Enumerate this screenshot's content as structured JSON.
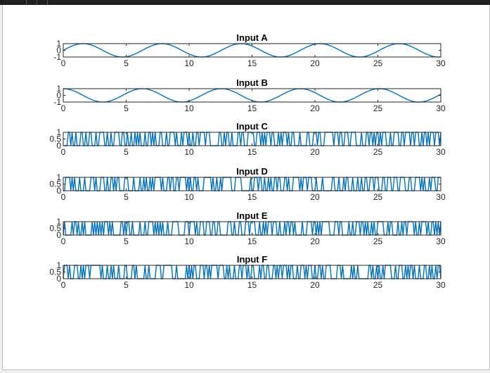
{
  "chart_data": [
    {
      "type": "line",
      "title": "Input A",
      "xlim": [
        0,
        30
      ],
      "ylim": [
        -1,
        1
      ],
      "xticks": [
        "0",
        "5",
        "10",
        "15",
        "20",
        "25",
        "30"
      ],
      "yticks": [
        "-1",
        "0",
        "1"
      ],
      "color": "#0072BD",
      "function": "sine",
      "period": 6.28,
      "phase": 0
    },
    {
      "type": "line",
      "title": "Input B",
      "xlim": [
        0,
        30
      ],
      "ylim": [
        -1,
        1
      ],
      "xticks": [
        "0",
        "5",
        "10",
        "15",
        "20",
        "25",
        "30"
      ],
      "yticks": [
        "-1",
        "0",
        "1"
      ],
      "color": "#0072BD",
      "function": "cosine",
      "period": 6.28,
      "phase": 0
    },
    {
      "type": "line",
      "title": "Input C",
      "xlim": [
        0,
        30
      ],
      "ylim": [
        0,
        1
      ],
      "xticks": [
        "0",
        "5",
        "10",
        "15",
        "20",
        "25",
        "30"
      ],
      "yticks": [
        "0",
        "0.5",
        "1"
      ],
      "color": "#0072BD",
      "function": "random-binary",
      "seed": 11
    },
    {
      "type": "line",
      "title": "Input D",
      "xlim": [
        0,
        30
      ],
      "ylim": [
        0,
        1
      ],
      "xticks": [
        "0",
        "5",
        "10",
        "15",
        "20",
        "25",
        "30"
      ],
      "yticks": [
        "0",
        "0.5",
        "1"
      ],
      "color": "#0072BD",
      "function": "random-binary",
      "seed": 23
    },
    {
      "type": "line",
      "title": "Input E",
      "xlim": [
        0,
        30
      ],
      "ylim": [
        0,
        1
      ],
      "xticks": [
        "0",
        "5",
        "10",
        "15",
        "20",
        "25",
        "30"
      ],
      "yticks": [
        "0",
        "0.5",
        "1"
      ],
      "color": "#0072BD",
      "function": "random-binary",
      "seed": 37
    },
    {
      "type": "line",
      "title": "Input F",
      "xlim": [
        0,
        30
      ],
      "ylim": [
        0,
        1
      ],
      "xticks": [
        "0",
        "5",
        "10",
        "15",
        "20",
        "25",
        "30"
      ],
      "yticks": [
        "0",
        "0.5",
        "1"
      ],
      "color": "#0072BD",
      "function": "random-binary",
      "seed": 51
    }
  ]
}
